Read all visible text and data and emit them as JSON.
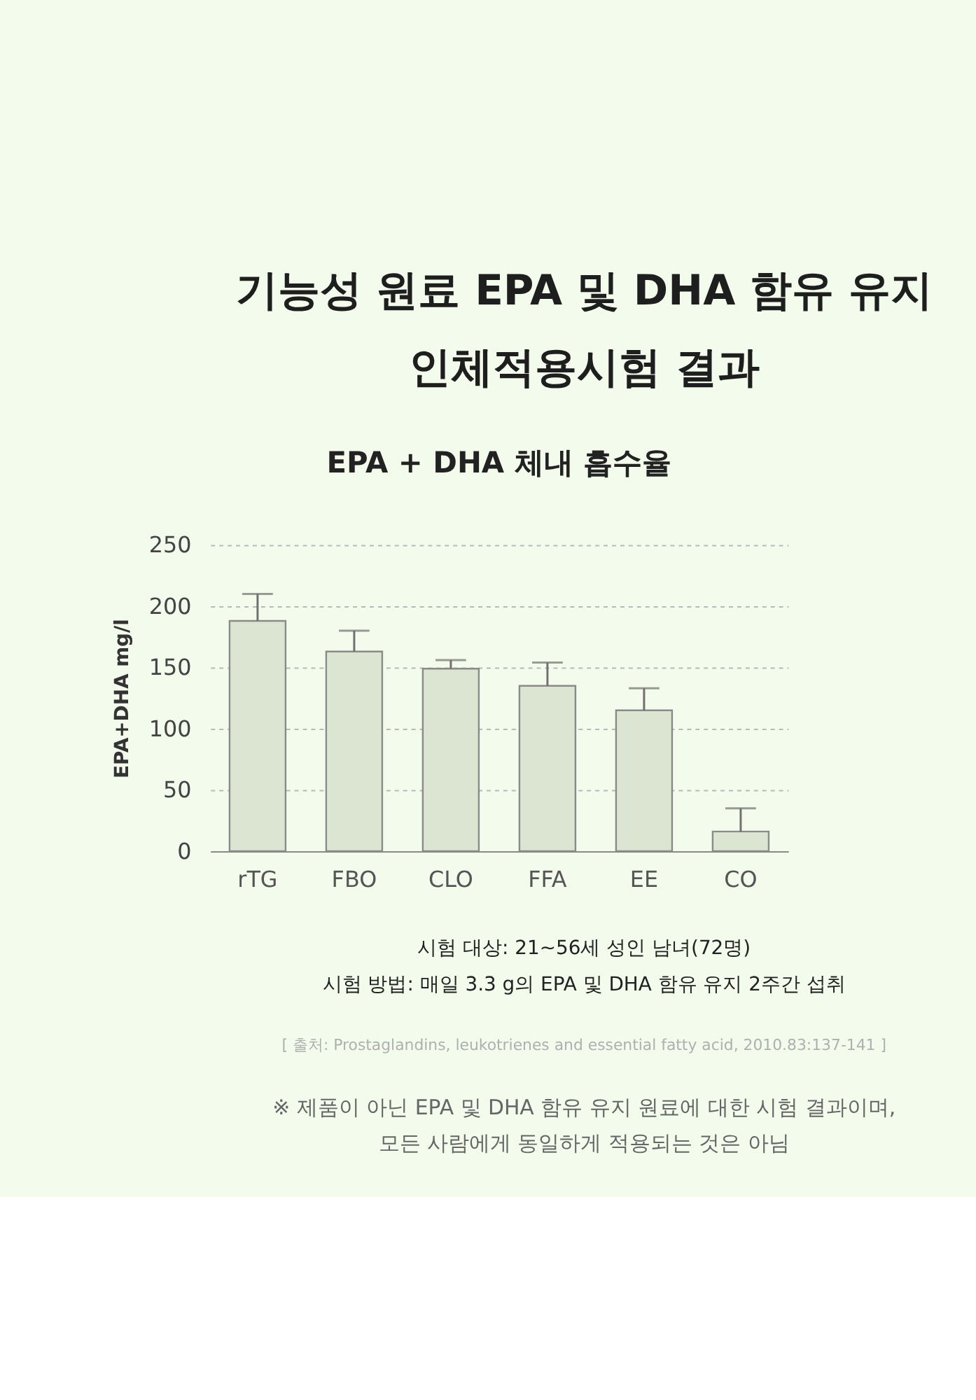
{
  "chart_data": {
    "type": "bar",
    "title": "기능성 원료 EPA 및 DHA 함유 유지\n인체적용시험 결과",
    "subtitle": "EPA + DHA 체내 흡수율",
    "ylabel": "EPA+DHA mg/l",
    "categories": [
      "rTG",
      "FBO",
      "CLO",
      "FFA",
      "EE",
      "CO"
    ],
    "values": [
      188,
      163,
      149,
      135,
      115,
      16
    ],
    "errors": [
      [
        188,
        210
      ],
      [
        163,
        180
      ],
      [
        149,
        156
      ],
      [
        135,
        154
      ],
      [
        115,
        133
      ],
      [
        16,
        35
      ]
    ],
    "color": "#dbe5d1",
    "ylim": [
      0,
      250
    ],
    "yticks": [
      0,
      50,
      100,
      150,
      200,
      250
    ],
    "grid": "y",
    "annotations": [
      "시험 대상: 21~56세 성인 남녀(72명)",
      "시험 방법: 매일 3.3 g의 EPA 및 DHA 함유 유지 2주간 섭취",
      "[ 출처: Prostaglandins, leukotrienes and essential fatty acid, 2010.83:137-141 ]",
      "※ 제품이 아닌 EPA 및 DHA 함유 유지 원료에 대한 시험 결과이며,\n모든 사람에게 동일하게 적용되는 것은 아님"
    ]
  }
}
